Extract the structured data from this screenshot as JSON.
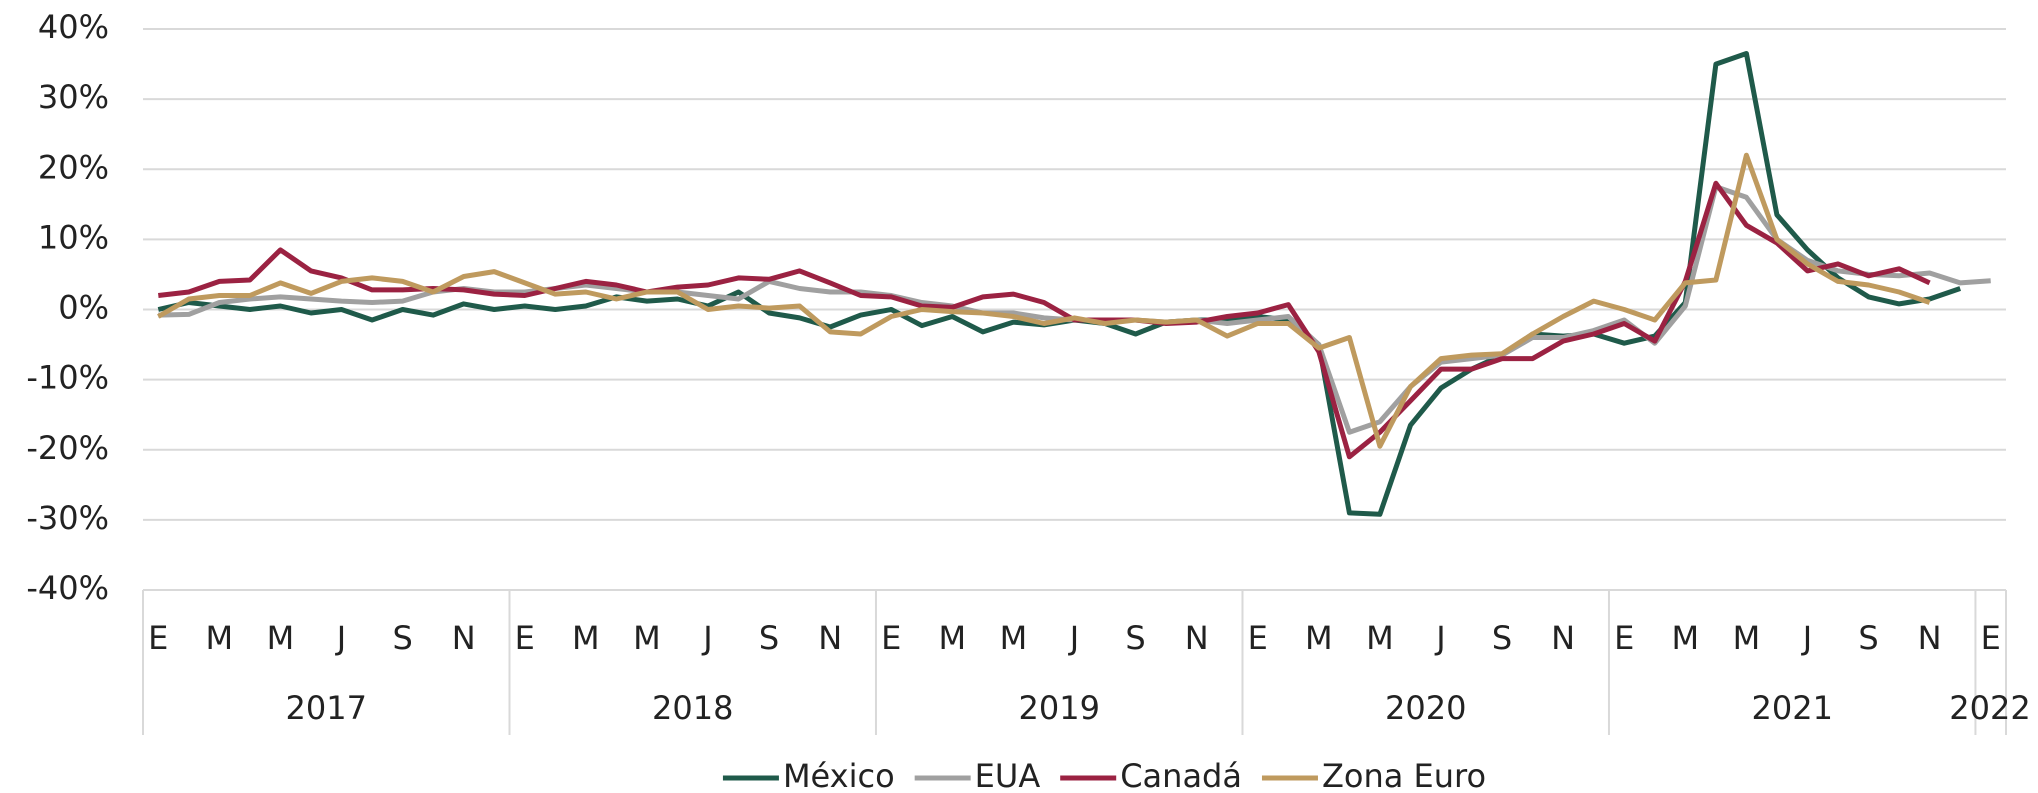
{
  "chart_data": {
    "type": "line",
    "categories": [
      "E",
      null,
      "M",
      null,
      "M",
      null,
      "J",
      null,
      "S",
      null,
      "N",
      null,
      "E",
      null,
      "M",
      null,
      "M",
      null,
      "J",
      null,
      "S",
      null,
      "N",
      null,
      "E",
      null,
      "M",
      null,
      "M",
      null,
      "J",
      null,
      "S",
      null,
      "N",
      null,
      "E",
      null,
      "M",
      null,
      "M",
      null,
      "J",
      null,
      "S",
      null,
      "N",
      null,
      "E",
      null,
      "M",
      null,
      "M",
      null,
      "J",
      null,
      "S",
      null,
      "N",
      null,
      "E"
    ],
    "groups": [
      {
        "label": "2017",
        "count": 12
      },
      {
        "label": "2018",
        "count": 12
      },
      {
        "label": "2019",
        "count": 12
      },
      {
        "label": "2020",
        "count": 12
      },
      {
        "label": "2021",
        "count": 12
      },
      {
        "label": "2022",
        "count": 1
      }
    ],
    "ylim": [
      -40,
      40
    ],
    "yticks": [
      {
        "value": -40,
        "label": "-40%"
      },
      {
        "value": -30,
        "label": "-30%"
      },
      {
        "value": -20,
        "label": "-20%"
      },
      {
        "value": -10,
        "label": "-10%"
      },
      {
        "value": 0,
        "label": "0%"
      },
      {
        "value": 10,
        "label": "10%"
      },
      {
        "value": 20,
        "label": "20%"
      },
      {
        "value": 30,
        "label": "30%"
      },
      {
        "value": 40,
        "label": "40%"
      }
    ],
    "grid": true,
    "legend": "bottom",
    "series": [
      {
        "name": "México",
        "color": "#1f5a4a",
        "values": [
          0,
          1,
          0.5,
          0,
          0.5,
          -0.5,
          0,
          -1.5,
          0,
          -0.8,
          0.8,
          0,
          0.5,
          0,
          0.5,
          1.8,
          1.2,
          1.5,
          0.5,
          2.5,
          -0.5,
          -1.2,
          -2.5,
          -0.8,
          0,
          -2.3,
          -1,
          -3.2,
          -1.8,
          -2.2,
          -1.5,
          -2,
          -3.5,
          -1.8,
          -1.5,
          -1.5,
          -1,
          -1.5,
          -5,
          -29,
          -29.2,
          -16.5,
          -11.2,
          -8.5,
          -6.5,
          -3.5,
          -3.8,
          -3.5,
          -4.8,
          -3.8,
          1,
          35,
          36.5,
          13.5,
          8.5,
          4.5,
          1.8,
          0.8,
          1.5,
          3,
          null
        ]
      },
      {
        "name": "EUA",
        "color": "#a0a0a0",
        "values": [
          -0.8,
          -0.7,
          1,
          1.5,
          1.8,
          1.5,
          1.2,
          1,
          1.2,
          2.5,
          3,
          2.5,
          2.5,
          3,
          3.5,
          3,
          2.5,
          2.5,
          2,
          1.5,
          4,
          3,
          2.5,
          2.5,
          2,
          1,
          0.5,
          -0.5,
          -0.5,
          -1.2,
          -1.5,
          -1.5,
          -1.5,
          -1.8,
          -1.5,
          -2,
          -1.5,
          -1,
          -5,
          -17.5,
          -16,
          -11,
          -7.5,
          -7,
          -6.5,
          -4,
          -4,
          -3,
          -1.5,
          -4.8,
          0.5,
          17.5,
          16,
          10,
          7,
          5.5,
          5,
          4.8,
          5.2,
          3.8,
          4.1
        ]
      },
      {
        "name": "Canadá",
        "color": "#9b2242",
        "values": [
          2,
          2.5,
          4,
          4.2,
          8.5,
          5.5,
          4.5,
          2.8,
          2.8,
          3,
          2.8,
          2.2,
          2,
          3,
          4,
          3.5,
          2.5,
          3.2,
          3.5,
          4.5,
          4.3,
          5.5,
          3.8,
          2,
          1.8,
          0.5,
          0.3,
          1.8,
          2.2,
          1,
          -1.5,
          -1.5,
          -1.5,
          -2,
          -1.8,
          -1,
          -0.5,
          0.7,
          -6,
          -21,
          -17.5,
          -13,
          -8.5,
          -8.5,
          -7,
          -7,
          -4.5,
          -3.5,
          -2,
          -4.5,
          4,
          18,
          12,
          9.5,
          5.5,
          6.5,
          4.8,
          5.8,
          3.8,
          null,
          null
        ]
      },
      {
        "name": "Zona Euro",
        "color": "#bf9a5e",
        "values": [
          -1,
          1.5,
          2,
          2,
          3.8,
          2.3,
          4,
          4.5,
          4,
          2.5,
          4.7,
          5.4,
          3.8,
          2.2,
          2.5,
          1.5,
          2.5,
          2.5,
          0,
          0.5,
          0.2,
          0.5,
          -3.2,
          -3.5,
          -1,
          0,
          -0.3,
          -0.5,
          -1,
          -2,
          -1.2,
          -2,
          -1.5,
          -1.8,
          -1.5,
          -3.8,
          -2,
          -2,
          -5.5,
          -4,
          -19.5,
          -11,
          -7,
          -6.5,
          -6.3,
          -3.5,
          -1,
          1.2,
          0,
          -1.5,
          3.8,
          4.2,
          22,
          10,
          6.5,
          4,
          3.5,
          2.5,
          1,
          null,
          null
        ]
      }
    ]
  }
}
